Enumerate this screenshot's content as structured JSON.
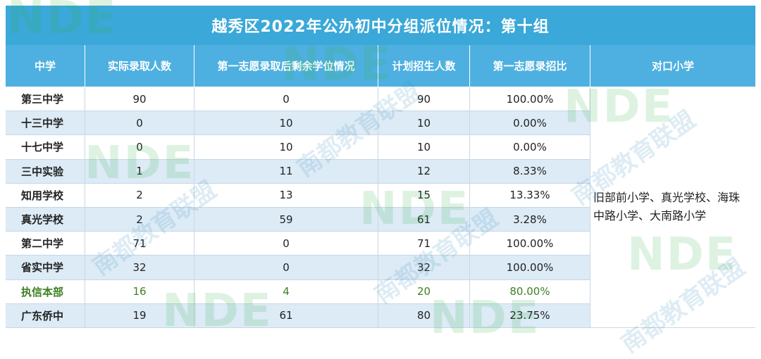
{
  "title": "越秀区2022年公办初中分组派位情况：第十组",
  "headers": [
    "中学",
    "实际录取人数",
    "第一志愿录取后剩余学位情况",
    "计划招生人数",
    "第一志愿录招比",
    "对口小学"
  ],
  "rows": [
    {
      "school": "第三中学",
      "admitted": "90",
      "remaining": "0",
      "planned": "90",
      "ratio": "100.00%"
    },
    {
      "school": "十三中学",
      "admitted": "0",
      "remaining": "10",
      "planned": "10",
      "ratio": "0.00%"
    },
    {
      "school": "十七中学",
      "admitted": "0",
      "remaining": "10",
      "planned": "10",
      "ratio": "0.00%"
    },
    {
      "school": "三中实验",
      "admitted": "1",
      "remaining": "11",
      "planned": "12",
      "ratio": "8.33%"
    },
    {
      "school": "知用学校",
      "admitted": "2",
      "remaining": "13",
      "planned": "15",
      "ratio": "13.33%"
    },
    {
      "school": "真光学校",
      "admitted": "2",
      "remaining": "59",
      "planned": "61",
      "ratio": "3.28%"
    },
    {
      "school": "第二中学",
      "admitted": "71",
      "remaining": "0",
      "planned": "71",
      "ratio": "100.00%"
    },
    {
      "school": "省实中学",
      "admitted": "32",
      "remaining": "0",
      "planned": "32",
      "ratio": "100.00%"
    },
    {
      "school": "执信本部",
      "admitted": "16",
      "remaining": "4",
      "planned": "20",
      "ratio": "80.00%"
    },
    {
      "school": "广东侨中",
      "admitted": "19",
      "remaining": "61",
      "planned": "80",
      "ratio": "23.75%"
    }
  ],
  "matched_primary": "旧部前小学、真光学校、海珠中路小学、大南路小学",
  "watermark": {
    "logo": "NDE",
    "cn": "南都教育联盟"
  },
  "colors": {
    "header": "#4db0e0",
    "title": "#3aa8d8",
    "stripe": "#dcebf6",
    "highlight_text": "#3f7f24"
  }
}
